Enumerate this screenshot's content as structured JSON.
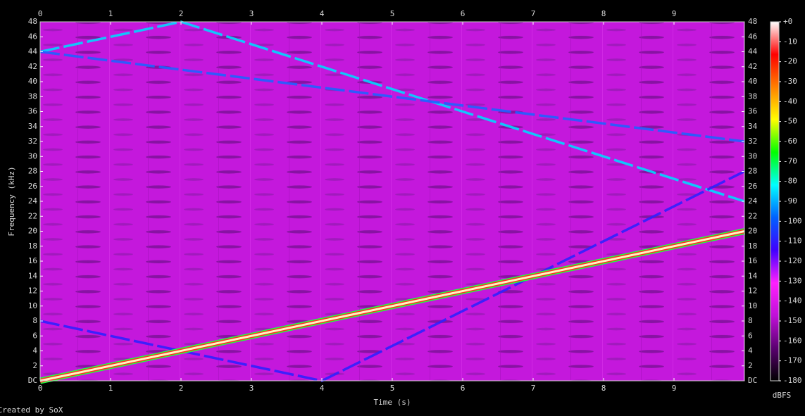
{
  "chart_data": {
    "type": "spectrogram",
    "xlabel": "Time (s)",
    "ylabel": "Frequency (kHz)",
    "footer": "Created by SoX",
    "xlim": [
      0,
      10
    ],
    "xticks": [
      0,
      1,
      2,
      3,
      4,
      5,
      6,
      7,
      8,
      9
    ],
    "ylim": [
      0,
      48
    ],
    "yticks": [
      {
        "value": 0,
        "label": "DC"
      },
      2,
      4,
      6,
      8,
      10,
      12,
      14,
      16,
      18,
      20,
      22,
      24,
      26,
      28,
      30,
      32,
      34,
      36,
      38,
      40,
      42,
      44,
      46,
      48
    ],
    "colorbar": {
      "label": "dBFS",
      "clim": [
        -180,
        0
      ],
      "ticks": [
        {
          "value": 0,
          "label": "+0"
        },
        -10,
        -20,
        -30,
        -40,
        -50,
        -60,
        -70,
        -80,
        -90,
        -100,
        -110,
        -120,
        -130,
        -140,
        -150,
        -160,
        -170,
        -180
      ],
      "colors": [
        "#000000",
        "#5a0070",
        "#c010d8",
        "#ff20ff",
        "#4000ff",
        "#0060ff",
        "#00ffff",
        "#00ff00",
        "#ffff00",
        "#ff8000",
        "#ff0000",
        "#ffffff"
      ]
    },
    "background": "#c418dc",
    "series": [
      {
        "color": "#00d8ff",
        "x": [
          0,
          2,
          10
        ],
        "values": [
          44,
          48,
          24
        ]
      },
      {
        "color": "#2060ff",
        "x": [
          0,
          10
        ],
        "values": [
          44,
          32
        ]
      },
      {
        "color": "#3020ff",
        "x": [
          0,
          4,
          10
        ],
        "values": [
          8,
          0,
          28
        ]
      },
      {
        "color": "#fff4c0",
        "x": [
          0,
          10
        ],
        "values": [
          0,
          20
        ]
      }
    ]
  }
}
